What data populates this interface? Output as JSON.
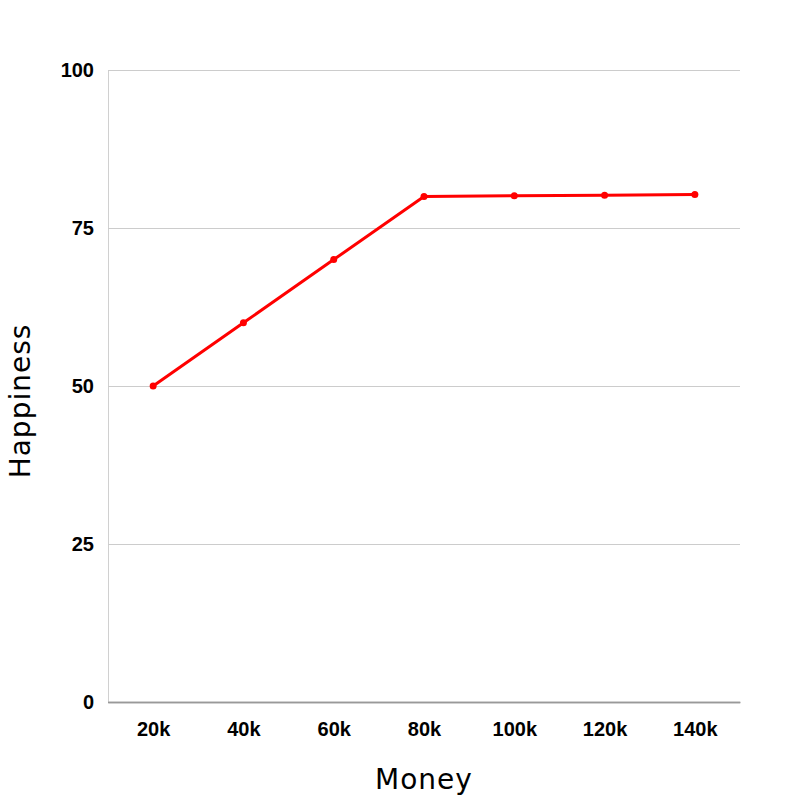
{
  "chart_data": {
    "type": "line",
    "x_label": "Money",
    "y_label": "Happiness",
    "categories": [
      "20k",
      "40k",
      "60k",
      "80k",
      "100k",
      "120k",
      "140k"
    ],
    "values": [
      50,
      60,
      70,
      80,
      80.1,
      80.2,
      80.3
    ],
    "color": "#ff0000",
    "marker": "circle",
    "ylim": [
      0,
      100
    ],
    "yticks": [
      0,
      25,
      50,
      75,
      100
    ],
    "grid": true
  }
}
